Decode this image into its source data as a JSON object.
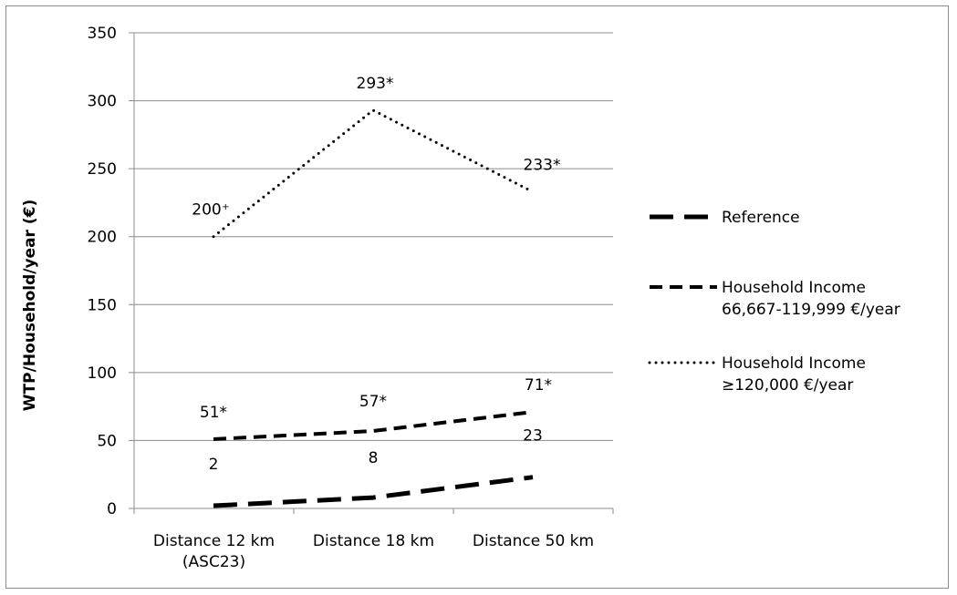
{
  "chart_data": {
    "type": "line",
    "title": "",
    "xlabel": "",
    "ylabel": "WTP/Household/year (€)",
    "ylim": [
      0,
      350
    ],
    "yticks": [
      0,
      50,
      100,
      150,
      200,
      250,
      300,
      350
    ],
    "grid": "horizontal",
    "legend_position": "right",
    "categories": [
      [
        "Distance 12 km",
        "(ASC23)"
      ],
      [
        "Distance 18 km"
      ],
      [
        "Distance 50 km"
      ]
    ],
    "series": [
      {
        "name": "Reference",
        "name_lines": [
          "Reference"
        ],
        "values": [
          2,
          8,
          23
        ],
        "labels": [
          "2",
          "8",
          "23"
        ],
        "style": "long-dash-thick",
        "color": "#000000"
      },
      {
        "name": "Household Income 66,667-119,999 €/year",
        "name_lines": [
          "Household Income",
          "66,667-119,999 €/year"
        ],
        "values": [
          51,
          57,
          71
        ],
        "labels": [
          "51*",
          "57*",
          "71*"
        ],
        "style": "dash",
        "color": "#000000"
      },
      {
        "name": "Household Income ≥120,000 €/year",
        "name_lines": [
          "Household Income",
          "≥120,000 €/year"
        ],
        "values": [
          200,
          293,
          233
        ],
        "labels": [
          "200⁺",
          "293*",
          "233*"
        ],
        "style": "dot",
        "color": "#000000"
      }
    ]
  }
}
